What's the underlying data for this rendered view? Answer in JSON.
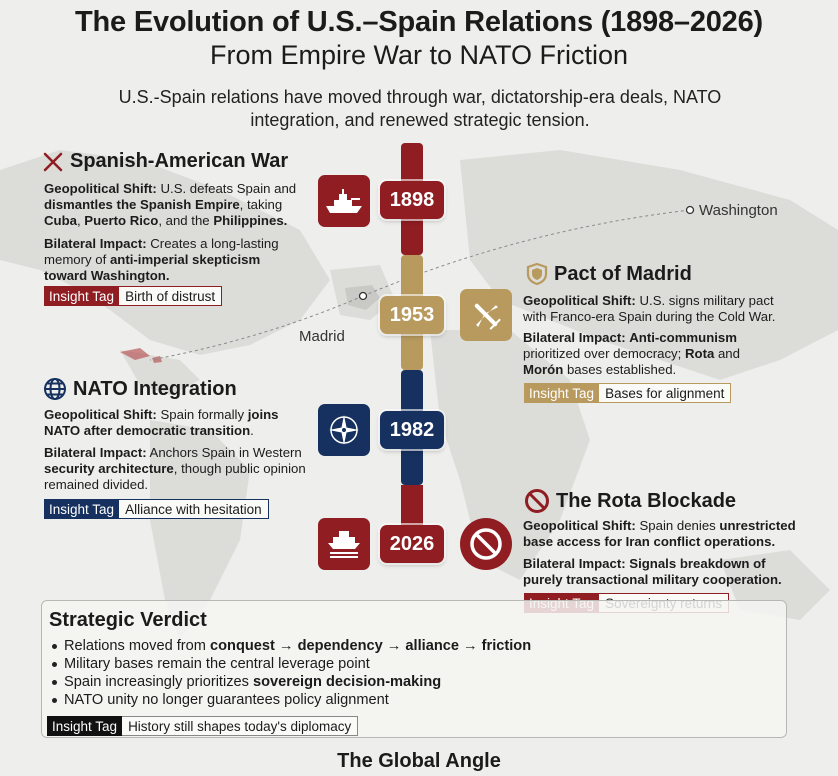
{
  "header": {
    "title": "The Evolution of U.S.–Spain Relations (1898–2026)",
    "subtitle": "From Empire War to NATO Friction",
    "intro": "U.S.-Spain relations have moved through war, dictatorship-era deals, NATO integration, and renewed strategic tension."
  },
  "map_labels": {
    "washington": "Washington",
    "madrid": "Madrid"
  },
  "colors": {
    "war_red": "#8f1d22",
    "gold": "#b89a5e",
    "navy": "#16315f",
    "black": "#111111"
  },
  "insight_tag_label": "Insight Tag",
  "gs_label": "Geopolitical Shift:",
  "bi_label": "Bilateral Impact:",
  "events": [
    {
      "year": "1898",
      "title": "Spanish-American War",
      "icon": "crossed-swords-icon",
      "side_icon": "warship-icon",
      "shift": [
        [
          "U.S. defeats Spain and ",
          false
        ],
        [
          "dismantles the Spanish Empire",
          true
        ],
        [
          ", taking ",
          false
        ],
        [
          "Cuba",
          true
        ],
        [
          ", ",
          false
        ],
        [
          "Puerto Rico",
          true
        ],
        [
          ", and the ",
          false
        ],
        [
          "Philippines",
          true
        ],
        [
          ".",
          true
        ]
      ],
      "impact": [
        [
          "Creates a long-lasting memory of ",
          false
        ],
        [
          "anti-imperial skepticism toward Washington.",
          true
        ]
      ],
      "tag": "Birth of distrust"
    },
    {
      "year": "1953",
      "title": "Pact of Madrid",
      "icon": "shield-icon",
      "side_icon": "airplane-icon",
      "shift": [
        [
          "U.S. signs military pact with Franco-era Spain during the Cold War.",
          false
        ]
      ],
      "impact": [
        [
          "Anti-communism",
          true
        ],
        [
          " prioritized over democracy; ",
          false
        ],
        [
          "Rota",
          true
        ],
        [
          " and ",
          false
        ],
        [
          "Morón",
          true
        ],
        [
          " bases established.",
          false
        ]
      ],
      "tag": "Bases for alignment"
    },
    {
      "year": "1982",
      "title": "NATO Integration",
      "icon": "globe-icon",
      "side_icon": "nato-compass-icon",
      "shift": [
        [
          "Spain formally ",
          false
        ],
        [
          "joins NATO after democratic transition",
          true
        ],
        [
          ".",
          false
        ]
      ],
      "impact": [
        [
          "Anchors Spain in Western ",
          false
        ],
        [
          "security architecture",
          true
        ],
        [
          ", though public opinion remained divided.",
          false
        ]
      ],
      "tag": "Alliance with hesitation"
    },
    {
      "year": "2026",
      "title": "The Rota Blockade",
      "icon": "prohibited-icon",
      "side_icon": "naval-base-icon",
      "shift": [
        [
          "Spain denies ",
          false
        ],
        [
          "unrestricted base access for Iran conflict operations.",
          true
        ]
      ],
      "impact": [
        [
          "Signals breakdown of purely transactional military cooperation.",
          true
        ]
      ],
      "tag": "Sovereignty returns"
    }
  ],
  "verdict": {
    "title": "Strategic Verdict",
    "items": [
      [
        [
          "Relations moved from ",
          false
        ],
        [
          "conquest → dependency → alliance → friction",
          true
        ]
      ],
      [
        [
          "Military bases remain the central leverage point",
          false
        ]
      ],
      [
        [
          "Spain increasingly prioritizes ",
          false
        ],
        [
          "sovereign decision-making",
          true
        ]
      ],
      [
        [
          "NATO unity no longer guarantees policy alignment",
          false
        ]
      ]
    ],
    "tag": "History still shapes today's diplomacy"
  },
  "footer": "The Global Angle"
}
